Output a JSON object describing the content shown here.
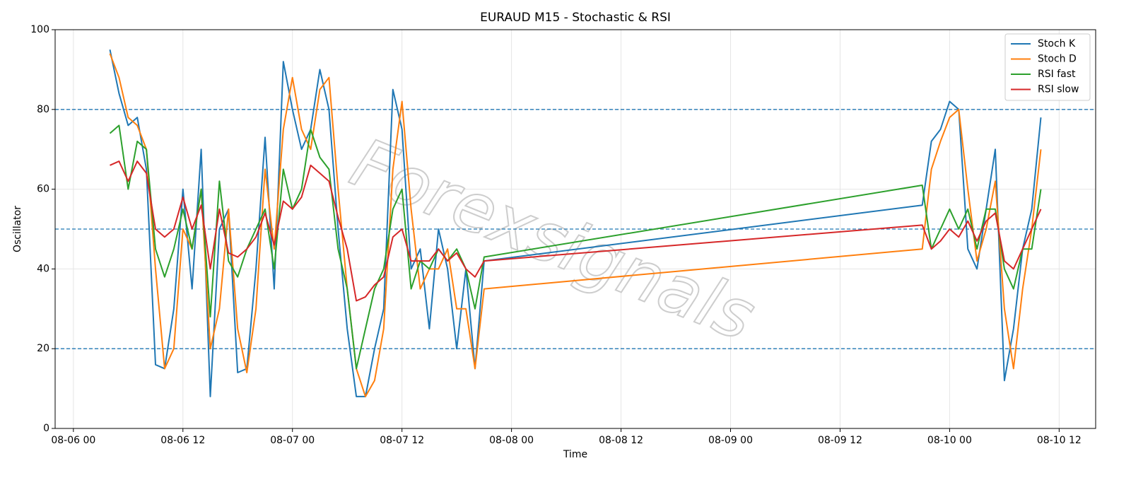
{
  "chart_data": {
    "type": "line",
    "title": "EURAUD M15 - Stochastic & RSI",
    "xlabel": "Time",
    "ylabel": "Oscillator",
    "watermark": "Forexsignals",
    "x": [
      "08-06 04",
      "08-06 05",
      "08-06 06",
      "08-06 07",
      "08-06 08",
      "08-06 09",
      "08-06 10",
      "08-06 11",
      "08-06 12",
      "08-06 13",
      "08-06 14",
      "08-06 15",
      "08-06 16",
      "08-06 17",
      "08-06 18",
      "08-06 19",
      "08-06 20",
      "08-06 21",
      "08-06 22",
      "08-06 23",
      "08-07 00",
      "08-07 01",
      "08-07 02",
      "08-07 03",
      "08-07 04",
      "08-07 05",
      "08-07 06",
      "08-07 07",
      "08-07 08",
      "08-07 09",
      "08-07 10",
      "08-07 11",
      "08-07 12",
      "08-07 13",
      "08-07 14",
      "08-07 15",
      "08-07 16",
      "08-07 17",
      "08-07 18",
      "08-07 19",
      "08-07 20",
      "08-07 21",
      "08-09 21",
      "08-09 22",
      "08-09 23",
      "08-10 00",
      "08-10 01",
      "08-10 02",
      "08-10 03",
      "08-10 04",
      "08-10 05",
      "08-10 06",
      "08-10 07",
      "08-10 08",
      "08-10 09",
      "08-10 10"
    ],
    "series": [
      {
        "name": "Stoch K",
        "color": "#1f77b4",
        "values": [
          95,
          84,
          76,
          78,
          65,
          16,
          15,
          30,
          60,
          35,
          70,
          8,
          50,
          55,
          14,
          15,
          40,
          73,
          35,
          92,
          80,
          70,
          75,
          90,
          80,
          50,
          25,
          8,
          8,
          20,
          30,
          85,
          75,
          40,
          45,
          25,
          50,
          40,
          20,
          40,
          15,
          42,
          56,
          72,
          75,
          82,
          80,
          45,
          40,
          55,
          70,
          12,
          25,
          45,
          55,
          78
        ]
      },
      {
        "name": "Stoch D",
        "color": "#ff7f0e",
        "values": [
          94,
          88,
          78,
          76,
          70,
          40,
          15,
          20,
          50,
          45,
          60,
          20,
          30,
          55,
          25,
          14,
          30,
          65,
          45,
          75,
          88,
          75,
          70,
          85,
          88,
          60,
          35,
          15,
          8,
          12,
          25,
          65,
          82,
          55,
          35,
          40,
          40,
          45,
          30,
          30,
          15,
          35,
          45,
          65,
          72,
          78,
          80,
          60,
          42,
          50,
          62,
          30,
          15,
          35,
          50,
          70
        ]
      },
      {
        "name": "RSI fast",
        "color": "#2ca02c",
        "values": [
          74,
          76,
          60,
          72,
          70,
          45,
          38,
          45,
          55,
          45,
          60,
          28,
          62,
          42,
          38,
          45,
          50,
          55,
          40,
          65,
          55,
          60,
          75,
          68,
          65,
          45,
          35,
          15,
          25,
          35,
          40,
          55,
          60,
          35,
          42,
          40,
          45,
          42,
          45,
          40,
          30,
          43,
          61,
          45,
          50,
          55,
          50,
          55,
          45,
          55,
          55,
          40,
          35,
          45,
          45,
          60
        ]
      },
      {
        "name": "RSI slow",
        "color": "#d62728",
        "values": [
          66,
          67,
          62,
          67,
          64,
          50,
          48,
          50,
          58,
          50,
          56,
          40,
          55,
          44,
          43,
          45,
          48,
          54,
          46,
          57,
          55,
          58,
          66,
          64,
          62,
          53,
          45,
          32,
          33,
          36,
          38,
          48,
          50,
          42,
          42,
          42,
          45,
          42,
          44,
          40,
          38,
          42,
          51,
          45,
          47,
          50,
          48,
          52,
          47,
          52,
          54,
          42,
          40,
          45,
          50,
          55
        ]
      }
    ],
    "xlim": [
      "08-05 22",
      "08-10 16"
    ],
    "xticks": [
      "08-06 00",
      "08-06 12",
      "08-07 00",
      "08-07 12",
      "08-08 00",
      "08-08 12",
      "08-09 00",
      "08-09 12",
      "08-10 00",
      "08-10 12"
    ],
    "ylim": [
      0,
      100
    ],
    "yticks": [
      0,
      20,
      40,
      60,
      80,
      100
    ],
    "hlines": [
      20,
      50,
      80
    ],
    "hline_color": "#1f77b4",
    "grid": true,
    "legend": "upper-right"
  }
}
